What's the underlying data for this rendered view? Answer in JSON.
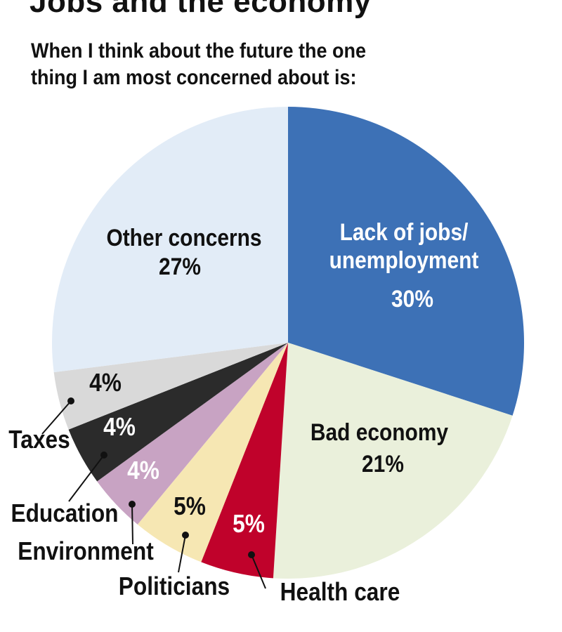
{
  "title": "Jobs and the economy",
  "subtitle_lines": [
    "When I think about the future the one",
    "thing I am most concerned about is:"
  ],
  "chart_data": {
    "type": "pie",
    "slices": [
      {
        "label_lines": [
          "Lack of jobs/",
          "unemployment"
        ],
        "value": 30,
        "value_label": "30%",
        "color": "#3d71b6"
      },
      {
        "label_lines": [
          "Bad economy"
        ],
        "value": 21,
        "value_label": "21%",
        "color": "#eaf0db"
      },
      {
        "label_lines": [
          "Health care"
        ],
        "value": 5,
        "value_label": "5%",
        "color": "#c0022b"
      },
      {
        "label_lines": [
          "Politicians"
        ],
        "value": 5,
        "value_label": "5%",
        "color": "#f6e7b3"
      },
      {
        "label_lines": [
          "Environment"
        ],
        "value": 4,
        "value_label": "4%",
        "color": "#c8a3c3"
      },
      {
        "label_lines": [
          "Education"
        ],
        "value": 4,
        "value_label": "4%",
        "color": "#2b2b2b"
      },
      {
        "label_lines": [
          "Taxes"
        ],
        "value": 4,
        "value_label": "4%",
        "color": "#d9d9d9"
      },
      {
        "label_lines": [
          "Other concerns"
        ],
        "value": 27,
        "value_label": "27%",
        "color": "#e2ecf7"
      }
    ]
  }
}
